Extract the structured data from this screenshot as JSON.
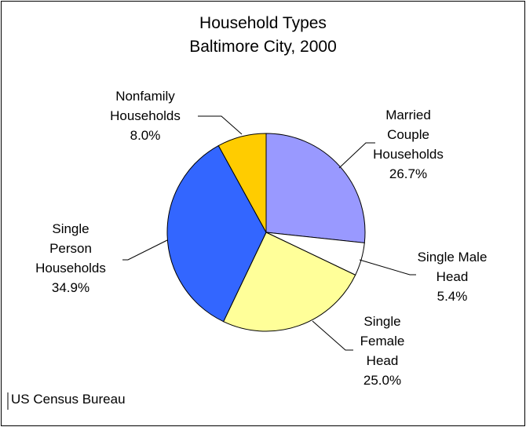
{
  "chart_data": {
    "type": "pie",
    "title": "Household Types",
    "subtitle": "Baltimore City, 2000",
    "categories": [
      "Married Couple Households",
      "Single Male Head",
      "Single Female Head",
      "Single Person Households",
      "Nonfamily Households"
    ],
    "values": [
      26.7,
      5.4,
      25.0,
      34.9,
      8.0
    ],
    "value_labels": [
      "26.7%",
      "5.4%",
      "25.0%",
      "34.9%",
      "8.0%"
    ],
    "colors": [
      "#9999ff",
      "#ffffff",
      "#ffff99",
      "#3366ff",
      "#ffcc00"
    ],
    "source": "US Census Bureau"
  }
}
